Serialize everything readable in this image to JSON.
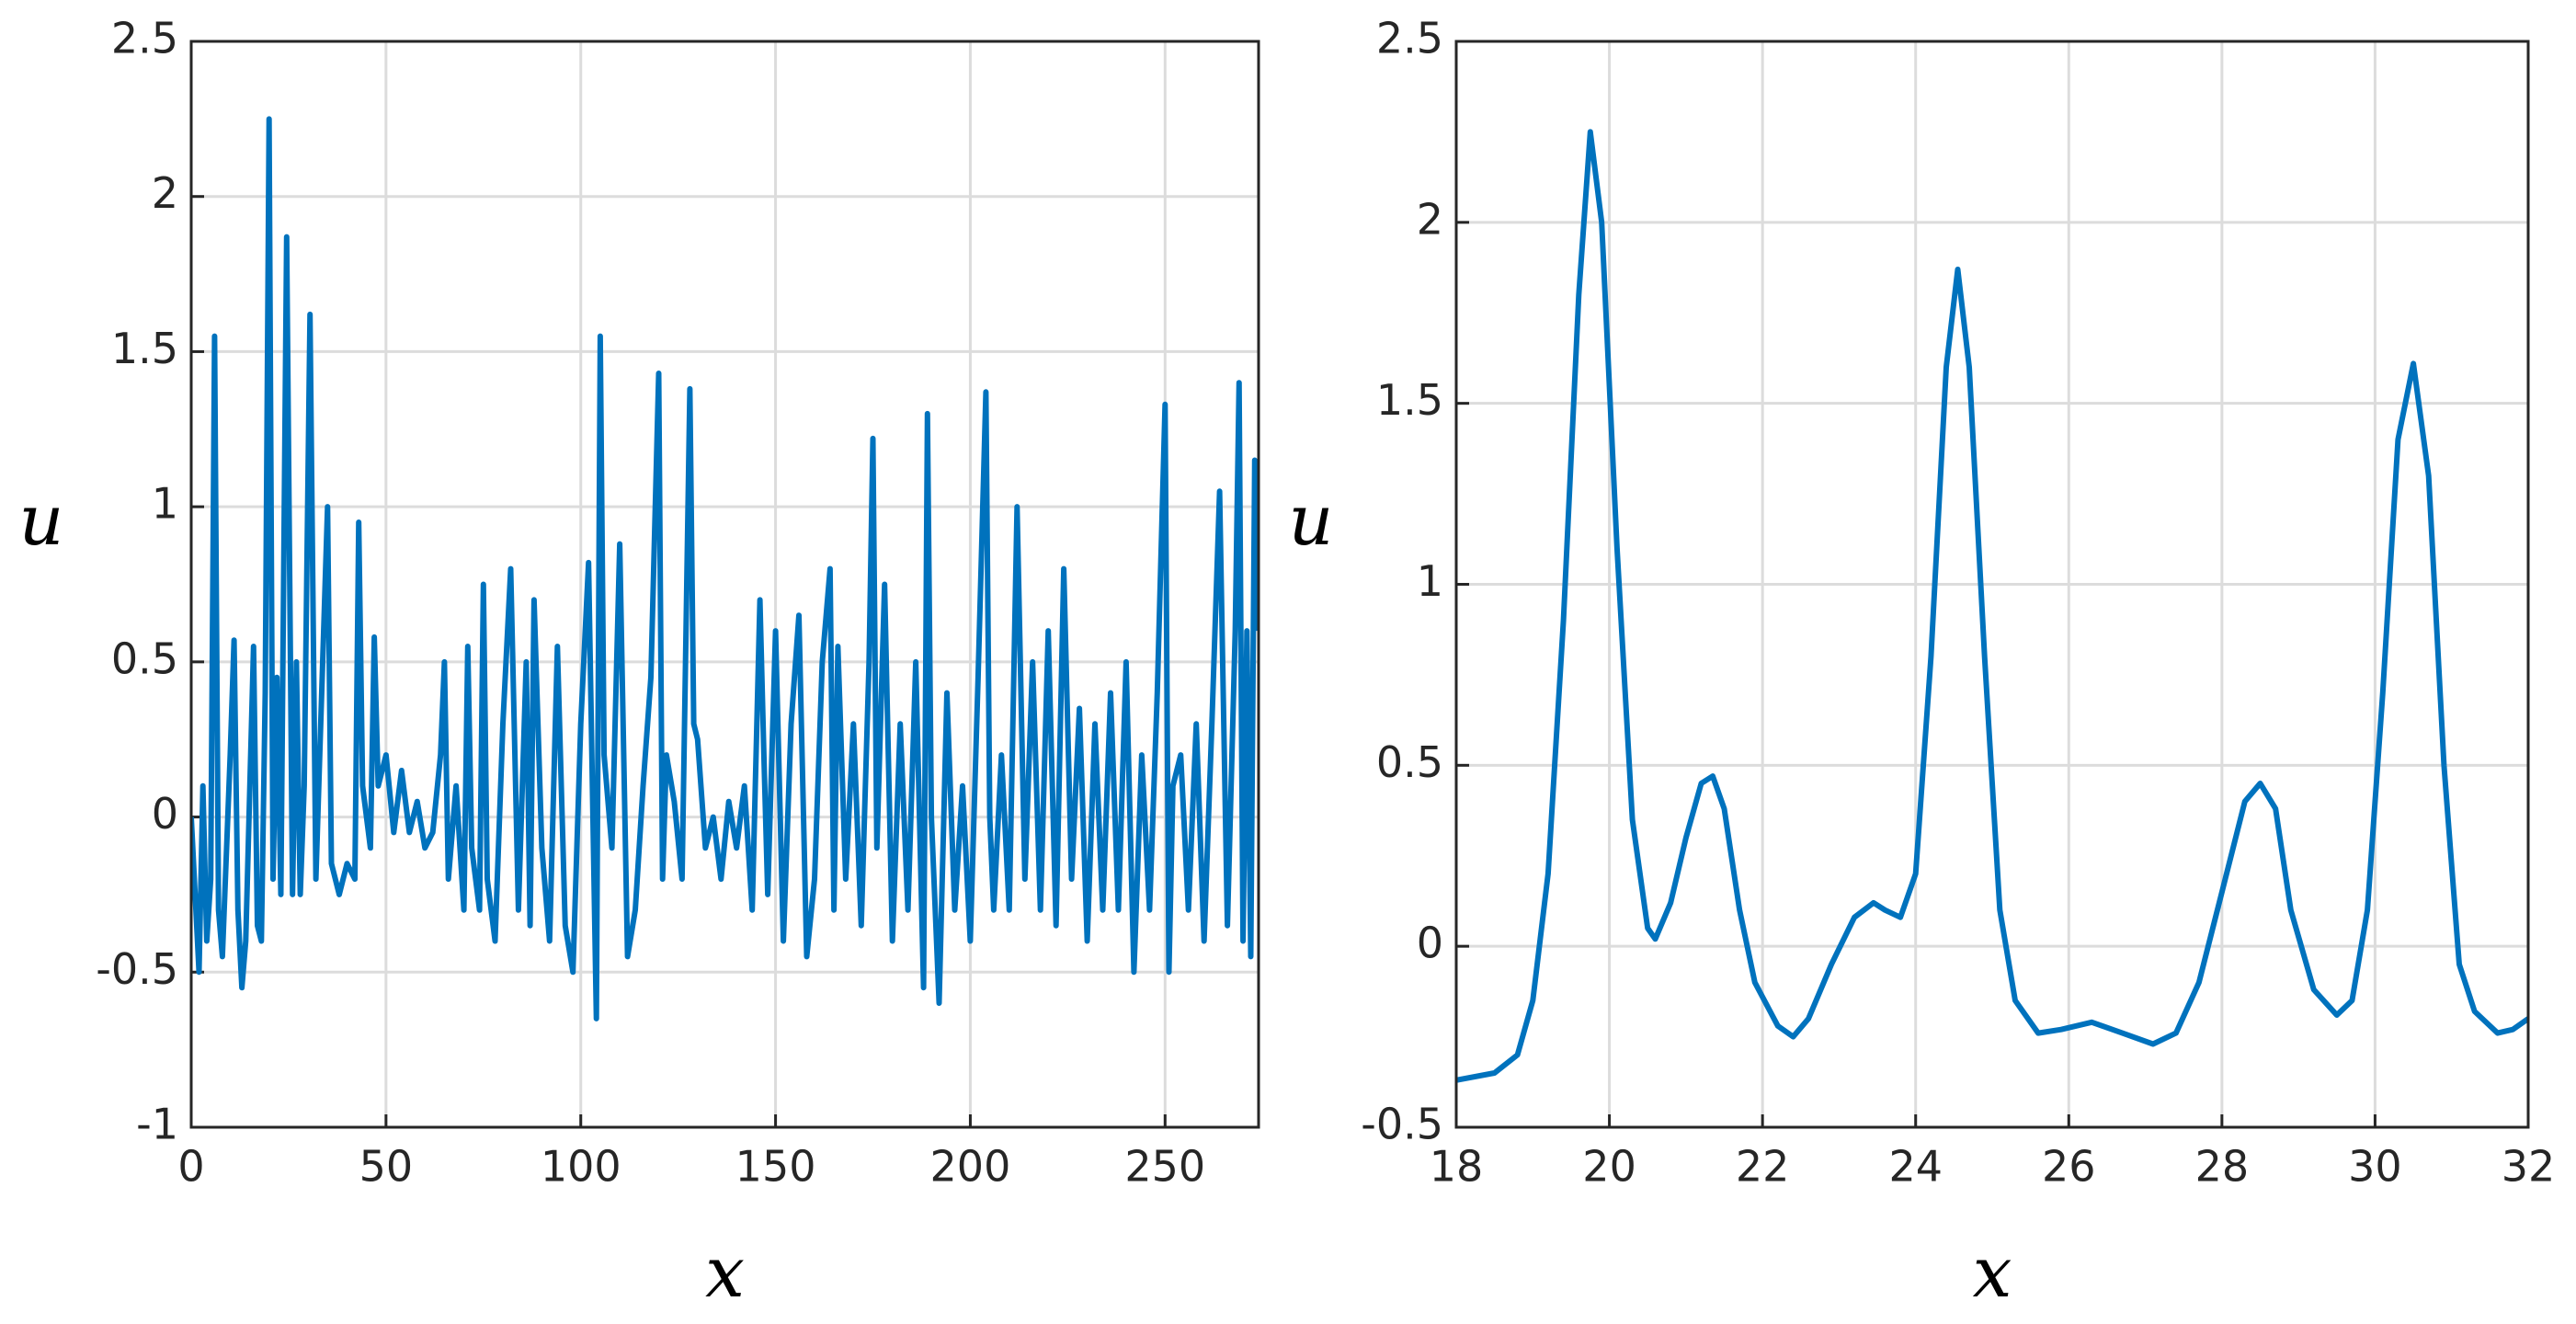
{
  "chart_data": [
    {
      "type": "line",
      "xlabel": "x",
      "ylabel": "u",
      "color": "#0072bd",
      "grid": true,
      "xlim": [
        0,
        274
      ],
      "ylim": [
        -1,
        2.5
      ],
      "xticks": [
        0,
        50,
        100,
        150,
        200,
        250
      ],
      "yticks": [
        -1,
        -0.5,
        0,
        0.5,
        1,
        1.5,
        2,
        2.5
      ],
      "x": [
        0,
        2,
        3,
        4,
        5,
        6,
        7,
        8,
        10,
        11,
        12,
        13,
        14,
        16,
        17,
        18,
        19,
        20,
        21,
        22,
        23,
        24.5,
        26,
        27,
        28,
        29,
        30.5,
        32,
        33,
        35,
        36,
        38,
        40,
        42,
        43,
        44,
        46,
        47,
        48,
        50,
        52,
        54,
        56,
        58,
        60,
        62,
        64,
        65,
        66,
        68,
        70,
        71,
        72,
        74,
        75,
        76,
        78,
        80,
        82,
        84,
        86,
        87,
        88,
        90,
        92,
        94,
        96,
        98,
        100,
        102,
        104,
        105,
        106,
        108,
        110,
        112,
        114,
        116,
        118,
        120,
        121,
        122,
        124,
        126,
        128,
        129,
        130,
        132,
        134,
        136,
        138,
        140,
        142,
        144,
        146,
        147,
        148,
        150,
        152,
        154,
        156,
        158,
        160,
        162,
        164,
        165,
        166,
        168,
        170,
        172,
        174,
        175,
        176,
        178,
        180,
        182,
        184,
        186,
        188,
        189,
        190,
        192,
        194,
        196,
        198,
        200,
        202,
        204,
        205,
        206,
        208,
        210,
        212,
        214,
        216,
        218,
        220,
        222,
        224,
        226,
        228,
        230,
        232,
        234,
        236,
        238,
        240,
        242,
        244,
        246,
        248,
        250,
        251,
        252,
        254,
        256,
        258,
        260,
        262,
        264,
        266,
        268,
        269,
        270,
        271,
        272,
        273,
        274
      ],
      "values": [
        0,
        -0.5,
        0.1,
        -0.4,
        -0.2,
        1.55,
        -0.3,
        -0.45,
        0.2,
        0.57,
        -0.3,
        -0.55,
        -0.4,
        0.55,
        -0.35,
        -0.4,
        0.4,
        2.25,
        -0.2,
        0.45,
        -0.25,
        1.87,
        -0.25,
        0.5,
        -0.25,
        0.1,
        1.62,
        -0.2,
        0.2,
        1.0,
        -0.15,
        -0.25,
        -0.15,
        -0.2,
        0.95,
        0.1,
        -0.1,
        0.58,
        0.1,
        0.2,
        -0.05,
        0.15,
        -0.05,
        0.05,
        -0.1,
        -0.05,
        0.2,
        0.5,
        -0.2,
        0.1,
        -0.3,
        0.55,
        -0.1,
        -0.3,
        0.75,
        -0.2,
        -0.4,
        0.3,
        0.8,
        -0.3,
        0.5,
        -0.35,
        0.7,
        -0.1,
        -0.4,
        0.55,
        -0.35,
        -0.5,
        0.3,
        0.82,
        -0.65,
        1.55,
        0.2,
        -0.1,
        0.88,
        -0.45,
        -0.3,
        0.1,
        0.45,
        1.43,
        -0.2,
        0.2,
        0.05,
        -0.2,
        1.38,
        0.3,
        0.25,
        -0.1,
        0,
        -0.2,
        0.05,
        -0.1,
        0.1,
        -0.3,
        0.7,
        0.2,
        -0.25,
        0.6,
        -0.4,
        0.3,
        0.65,
        -0.45,
        -0.2,
        0.5,
        0.8,
        -0.3,
        0.55,
        -0.2,
        0.3,
        -0.35,
        0.5,
        1.22,
        -0.1,
        0.75,
        -0.4,
        0.3,
        -0.3,
        0.5,
        -0.55,
        1.3,
        0,
        -0.6,
        0.4,
        -0.3,
        0.1,
        -0.4,
        0.45,
        1.37,
        0,
        -0.3,
        0.2,
        -0.3,
        1.0,
        -0.2,
        0.5,
        -0.3,
        0.6,
        -0.35,
        0.8,
        -0.2,
        0.35,
        -0.4,
        0.3,
        -0.3,
        0.4,
        -0.3,
        0.5,
        -0.5,
        0.2,
        -0.3,
        0.4,
        1.33,
        -0.5,
        0.1,
        0.2,
        -0.3,
        0.3,
        -0.4,
        0.3,
        1.05,
        -0.35,
        0.6,
        1.4,
        -0.4,
        0.6,
        -0.45,
        1.15,
        0.6
      ]
    },
    {
      "type": "line",
      "xlabel": "x",
      "ylabel": "u",
      "color": "#0072bd",
      "grid": true,
      "xlim": [
        18,
        32
      ],
      "ylim": [
        -0.5,
        2.5
      ],
      "xticks": [
        18,
        20,
        22,
        24,
        26,
        28,
        30,
        32
      ],
      "yticks": [
        -0.5,
        0,
        0.5,
        1,
        1.5,
        2,
        2.5
      ],
      "x": [
        18,
        18.5,
        18.8,
        19.0,
        19.2,
        19.4,
        19.6,
        19.75,
        19.9,
        20.1,
        20.3,
        20.5,
        20.6,
        20.8,
        21.0,
        21.2,
        21.35,
        21.5,
        21.7,
        21.9,
        22.2,
        22.4,
        22.6,
        22.9,
        23.2,
        23.45,
        23.6,
        23.8,
        24.0,
        24.2,
        24.4,
        24.55,
        24.7,
        24.9,
        25.1,
        25.3,
        25.6,
        25.9,
        26.3,
        26.7,
        27.1,
        27.4,
        27.7,
        28.0,
        28.3,
        28.5,
        28.7,
        28.9,
        29.2,
        29.5,
        29.7,
        29.9,
        30.1,
        30.3,
        30.5,
        30.7,
        30.9,
        31.1,
        31.3,
        31.6,
        31.8,
        32
      ],
      "values": [
        -0.37,
        -0.35,
        -0.3,
        -0.15,
        0.2,
        0.9,
        1.8,
        2.25,
        2.0,
        1.1,
        0.35,
        0.05,
        0.02,
        0.12,
        0.3,
        0.45,
        0.47,
        0.38,
        0.1,
        -0.1,
        -0.22,
        -0.25,
        -0.2,
        -0.05,
        0.08,
        0.12,
        0.1,
        0.08,
        0.2,
        0.8,
        1.6,
        1.87,
        1.6,
        0.8,
        0.1,
        -0.15,
        -0.24,
        -0.23,
        -0.21,
        -0.24,
        -0.27,
        -0.24,
        -0.1,
        0.15,
        0.4,
        0.45,
        0.38,
        0.1,
        -0.12,
        -0.19,
        -0.15,
        0.1,
        0.7,
        1.4,
        1.61,
        1.3,
        0.5,
        -0.05,
        -0.18,
        -0.24,
        -0.23,
        -0.2
      ]
    }
  ]
}
